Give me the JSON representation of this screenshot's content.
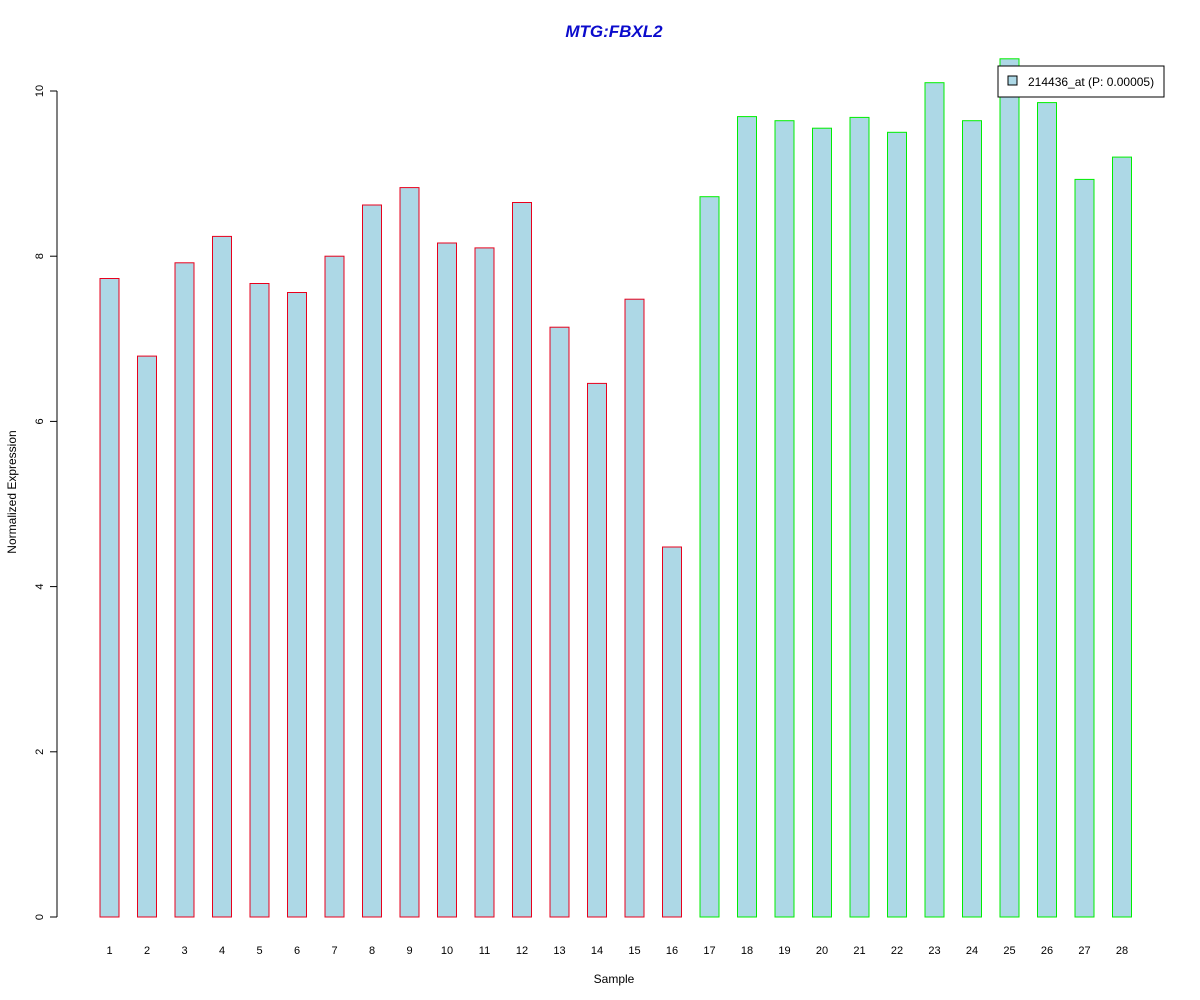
{
  "chart_data": {
    "type": "bar",
    "title": "MTG:FBXL2",
    "xlabel": "Sample",
    "ylabel": "Normalized Expression",
    "categories": [
      "1",
      "2",
      "3",
      "4",
      "5",
      "6",
      "7",
      "8",
      "9",
      "10",
      "11",
      "12",
      "13",
      "14",
      "15",
      "16",
      "17",
      "18",
      "19",
      "20",
      "21",
      "22",
      "23",
      "24",
      "25",
      "26",
      "27",
      "28"
    ],
    "series": [
      {
        "name": "214436_at (P: 0.00005)",
        "values": [
          7.73,
          6.79,
          7.92,
          8.24,
          7.67,
          7.56,
          8.0,
          8.62,
          8.83,
          8.16,
          8.1,
          8.65,
          7.14,
          6.46,
          7.48,
          4.48,
          8.72,
          9.69,
          9.64,
          9.55,
          9.68,
          9.5,
          10.1,
          9.64,
          10.39,
          9.86,
          8.93,
          9.2
        ]
      }
    ],
    "groups": [
      {
        "samples": [
          1,
          16
        ],
        "border_color": "#e8001c"
      },
      {
        "samples": [
          17,
          28
        ],
        "border_color": "#00ee00"
      }
    ],
    "yticks": [
      "0",
      "2",
      "4",
      "6",
      "8",
      "10"
    ],
    "ylim": [
      0,
      10.4
    ],
    "grid": false,
    "legend_position": "top-right",
    "colors": {
      "title": "#0b0bcc",
      "bar_fill": "#add8e6",
      "axis": "#000000"
    }
  }
}
